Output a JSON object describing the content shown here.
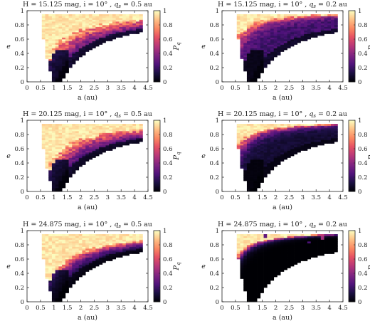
{
  "chart_data": [
    {
      "type": "heatmap",
      "title": "H = 15.125 mag, i = 10°, q_s = 0.5 au",
      "title_parts": {
        "lead": "H = 15.125 mag, i = 10° , ",
        "q": "q",
        "sub": "s",
        "tail": " = 0.5 au"
      },
      "xlabel": "a (au)",
      "ylabel": "e",
      "colorbar_label": "P_q",
      "xlim": [
        0,
        4.5
      ],
      "ylim": [
        0,
        1
      ],
      "x_ticks": [
        "0",
        "0.5",
        "1",
        "1.5",
        "2",
        "2.5",
        "3",
        "3.5",
        "4",
        "4.5"
      ],
      "y_ticks": [
        "0",
        "0.2",
        "0.4",
        "0.6",
        "0.8",
        "1"
      ],
      "colorbar_ticks": [
        "0",
        "0.2",
        "0.4",
        "0.6",
        "0.8",
        "1"
      ],
      "colormap": "magma",
      "grid": {
        "a_min": 0.3,
        "a_max": 4.25,
        "a_step": 0.125,
        "e_min": 0.0,
        "e_max": 0.95,
        "e_step": 0.025
      },
      "q_s_au": 0.5,
      "boundary_offset": 0.0,
      "falloff_scale": 0.5,
      "base_level": 0.0
    },
    {
      "type": "heatmap",
      "title": "H = 15.125 mag, i = 10°, q_s = 0.2 au",
      "title_parts": {
        "lead": "H = 15.125 mag, i = 10° , ",
        "q": "q",
        "sub": "s",
        "tail": " = 0.2 au"
      },
      "xlabel": "a (au)",
      "ylabel": "e",
      "colorbar_label": "P_q",
      "xlim": [
        0,
        4.5
      ],
      "ylim": [
        0,
        1
      ],
      "x_ticks": [
        "0",
        "0.5",
        "1",
        "1.5",
        "2",
        "2.5",
        "3",
        "3.5",
        "4",
        "4.5"
      ],
      "y_ticks": [
        "0",
        "0.2",
        "0.4",
        "0.6",
        "0.8",
        "1"
      ],
      "colorbar_ticks": [
        "0",
        "0.2",
        "0.4",
        "0.6",
        "0.8",
        "1"
      ],
      "colormap": "magma",
      "grid": {
        "a_min": 0.3,
        "a_max": 4.25,
        "a_step": 0.125,
        "e_min": 0.0,
        "e_max": 0.95,
        "e_step": 0.025
      },
      "q_s_au": 0.2,
      "boundary_offset": 0.0,
      "falloff_scale": 0.12,
      "base_level": 0.22
    },
    {
      "type": "heatmap",
      "title": "H = 20.125 mag, i = 10°, q_s = 0.5 au",
      "title_parts": {
        "lead": "H = 20.125 mag, i = 10° , ",
        "q": "q",
        "sub": "s",
        "tail": " = 0.5 au"
      },
      "xlabel": "a (au)",
      "ylabel": "e",
      "colorbar_label": "P_q",
      "xlim": [
        0,
        4.5
      ],
      "ylim": [
        0,
        1
      ],
      "x_ticks": [
        "0",
        "0.5",
        "1",
        "1.5",
        "2",
        "2.5",
        "3",
        "3.5",
        "4",
        "4.5"
      ],
      "y_ticks": [
        "0",
        "0.2",
        "0.4",
        "0.6",
        "0.8",
        "1"
      ],
      "colorbar_ticks": [
        "0",
        "0.2",
        "0.4",
        "0.6",
        "0.8",
        "1"
      ],
      "colormap": "magma",
      "grid": {
        "a_min": 0.3,
        "a_max": 4.25,
        "a_step": 0.125,
        "e_min": 0.0,
        "e_max": 0.95,
        "e_step": 0.025
      },
      "q_s_au": 0.5,
      "boundary_offset": 0.0,
      "falloff_scale": 0.42,
      "base_level": 0.0
    },
    {
      "type": "heatmap",
      "title": "H = 20.125 mag, i = 10°, q_s = 0.2 au",
      "title_parts": {
        "lead": "H = 20.125 mag, i = 10° , ",
        "q": "q",
        "sub": "s",
        "tail": " = 0.2 au"
      },
      "xlabel": "a (au)",
      "ylabel": "e",
      "colorbar_label": "P_q",
      "xlim": [
        0,
        4.5
      ],
      "ylim": [
        0,
        1
      ],
      "x_ticks": [
        "0",
        "0.5",
        "1",
        "1.5",
        "2",
        "2.5",
        "3",
        "3.5",
        "4",
        "4.5"
      ],
      "y_ticks": [
        "0",
        "0.2",
        "0.4",
        "0.6",
        "0.8",
        "1"
      ],
      "colorbar_ticks": [
        "0",
        "0.2",
        "0.4",
        "0.6",
        "0.8",
        "1"
      ],
      "colormap": "magma",
      "grid": {
        "a_min": 0.3,
        "a_max": 4.25,
        "a_step": 0.125,
        "e_min": 0.0,
        "e_max": 0.95,
        "e_step": 0.025
      },
      "q_s_au": 0.2,
      "boundary_offset": 0.0,
      "falloff_scale": 0.1,
      "base_level": 0.1
    },
    {
      "type": "heatmap",
      "title": "H = 24.875 mag, i = 10°, q_s = 0.5 au",
      "title_parts": {
        "lead": "H = 24.875 mag, i = 10° , ",
        "q": "q",
        "sub": "s",
        "tail": " = 0.5 au"
      },
      "xlabel": "a (au)",
      "ylabel": "e",
      "colorbar_label": "P_q",
      "xlim": [
        0,
        4.5
      ],
      "ylim": [
        0,
        1
      ],
      "x_ticks": [
        "0",
        "0.5",
        "1",
        "1.5",
        "2",
        "2.5",
        "3",
        "3.5",
        "4",
        "4.5"
      ],
      "y_ticks": [
        "0",
        "0.2",
        "0.4",
        "0.6",
        "0.8",
        "1"
      ],
      "colorbar_ticks": [
        "0",
        "0.2",
        "0.4",
        "0.6",
        "0.8",
        "1"
      ],
      "colormap": "magma",
      "grid": {
        "a_min": 0.3,
        "a_max": 4.25,
        "a_step": 0.125,
        "e_min": 0.0,
        "e_max": 0.95,
        "e_step": 0.025
      },
      "q_s_au": 0.5,
      "boundary_offset": 0.08,
      "falloff_scale": 0.25,
      "base_level": 0.0
    },
    {
      "type": "heatmap",
      "title": "H = 24.875 mag, i = 10°, q_s = 0.2 au",
      "title_parts": {
        "lead": "H = 24.875 mag, i = 10° , ",
        "q": "q",
        "sub": "s",
        "tail": " = 0.2 au"
      },
      "xlabel": "a (au)",
      "ylabel": "e",
      "colorbar_label": "P_q",
      "xlim": [
        0,
        4.5
      ],
      "ylim": [
        0,
        1
      ],
      "x_ticks": [
        "0",
        "0.5",
        "1",
        "1.5",
        "2",
        "2.5",
        "3",
        "3.5",
        "4",
        "4.5"
      ],
      "y_ticks": [
        "0",
        "0.2",
        "0.4",
        "0.6",
        "0.8",
        "1"
      ],
      "colorbar_ticks": [
        "0",
        "0.2",
        "0.4",
        "0.6",
        "0.8",
        "1"
      ],
      "colormap": "magma",
      "grid": {
        "a_min": 0.3,
        "a_max": 4.25,
        "a_step": 0.125,
        "e_min": 0.0,
        "e_max": 0.95,
        "e_step": 0.025
      },
      "q_s_au": 0.2,
      "boundary_offset": 0.0,
      "falloff_scale": 0.05,
      "base_level": 0.0,
      "sparse_highlights": [
        [
          3.7,
          0.9,
          0.45
        ],
        [
          3.2,
          0.84,
          0.25
        ],
        [
          1.6,
          0.93,
          0.3
        ],
        [
          0.4,
          0.5,
          0.15
        ]
      ]
    }
  ]
}
